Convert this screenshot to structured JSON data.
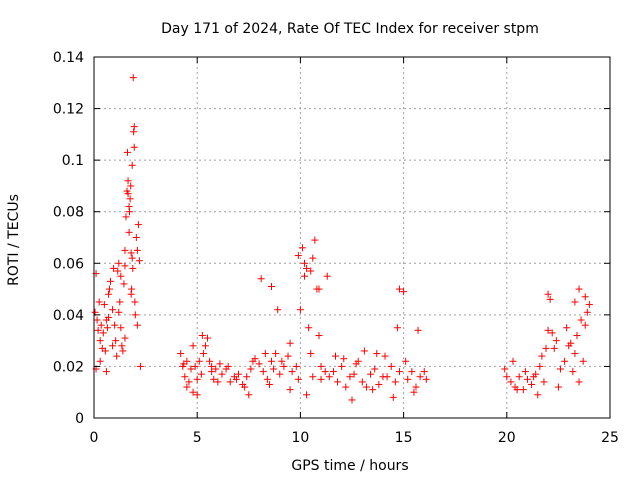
{
  "chart_data": {
    "type": "scatter",
    "title": "Day 171 of 2024, Rate Of TEC Index for receiver stpm",
    "xlabel": "GPS time / hours",
    "ylabel": "ROTI / TECUs",
    "xlim": [
      0,
      25
    ],
    "ylim": [
      0,
      0.14
    ],
    "xticks": [
      0,
      5,
      10,
      15,
      20,
      25
    ],
    "yticks": [
      0,
      0.02,
      0.04,
      0.06,
      0.08,
      0.1,
      0.12,
      0.14
    ],
    "xtick_labels": [
      "0",
      "5",
      "10",
      "15",
      "20",
      "25"
    ],
    "ytick_labels": [
      "0",
      "0.02",
      "0.04",
      "0.06",
      "0.08",
      "0.1",
      "0.12",
      "0.14"
    ],
    "grid": true,
    "marker": "+",
    "color": "#ff0000",
    "series": [
      {
        "name": "ROTI",
        "x": [
          0.05,
          0.1,
          0.15,
          0.2,
          0.25,
          0.3,
          0.35,
          0.4,
          0.45,
          0.5,
          0.55,
          0.6,
          0.65,
          0.7,
          0.75,
          0.8,
          0.9,
          0.95,
          1.0,
          1.05,
          1.1,
          1.15,
          1.2,
          1.25,
          1.3,
          1.35,
          1.4,
          1.45,
          1.5,
          1.55,
          1.6,
          1.62,
          1.65,
          1.7,
          1.72,
          1.75,
          1.78,
          1.8,
          1.82,
          1.85,
          1.88,
          1.9,
          1.92,
          1.95,
          1.98,
          2.0,
          2.05,
          2.1,
          2.15,
          2.2,
          2.25,
          4.2,
          4.3,
          4.4,
          4.5,
          4.6,
          4.7,
          4.8,
          4.9,
          5.0,
          5.1,
          5.2,
          5.3,
          5.4,
          5.5,
          5.6,
          5.7,
          5.8,
          5.9,
          6.0,
          6.2,
          6.4,
          6.6,
          6.8,
          7.0,
          7.2,
          7.4,
          7.6,
          7.8,
          8.0,
          8.2,
          8.4,
          8.6,
          8.8,
          9.0,
          9.2,
          9.4,
          9.6,
          9.8,
          9.9,
          10.0,
          10.1,
          10.2,
          10.3,
          10.4,
          10.5,
          10.6,
          10.7,
          10.8,
          10.9,
          11.0,
          11.2,
          11.4,
          11.6,
          11.8,
          12.0,
          12.2,
          12.4,
          12.6,
          12.8,
          13.0,
          13.2,
          13.4,
          13.6,
          13.8,
          14.0,
          14.2,
          14.4,
          14.6,
          14.8,
          15.0,
          15.2,
          15.4,
          15.6,
          15.8,
          16.0,
          16.1,
          19.9,
          20.0,
          20.2,
          20.4,
          20.6,
          20.8,
          21.0,
          21.2,
          21.4,
          21.6,
          21.8,
          21.9,
          22.0,
          22.1,
          22.2,
          22.4,
          22.6,
          22.8,
          23.0,
          23.2,
          23.3,
          23.4,
          23.5,
          23.6,
          23.7,
          23.8,
          23.9,
          24.0,
          0.3,
          0.6,
          0.9,
          1.2,
          1.5,
          1.8,
          2.1,
          4.5,
          5.0,
          6.5,
          7.5,
          8.5,
          9.5,
          10.3,
          10.6,
          11.0,
          12.5,
          13.5,
          14.5,
          15.5,
          20.5,
          21.5,
          22.5,
          23.5,
          8.1,
          8.6,
          8.9,
          9.9,
          10.2,
          10.5,
          10.9,
          11.3,
          14.8,
          22.0,
          23.3,
          1.95,
          1.85,
          1.7,
          1.65,
          1.5,
          1.3,
          0.1,
          0.7,
          4.35,
          4.8,
          5.25,
          5.7,
          6.1,
          6.9,
          7.3,
          7.7,
          8.3,
          8.7,
          9.1,
          9.5,
          11.7,
          12.1,
          12.7,
          13.1,
          13.7,
          14.1,
          14.7,
          15.1,
          15.7,
          20.3,
          20.9,
          21.3,
          21.7,
          22.3,
          22.9,
          23.1,
          23.8
        ],
        "y": [
          0.041,
          0.056,
          0.038,
          0.034,
          0.045,
          0.03,
          0.036,
          0.027,
          0.033,
          0.044,
          0.026,
          0.018,
          0.035,
          0.039,
          0.05,
          0.053,
          0.042,
          0.058,
          0.036,
          0.03,
          0.024,
          0.057,
          0.06,
          0.045,
          0.035,
          0.028,
          0.026,
          0.052,
          0.065,
          0.078,
          0.088,
          0.103,
          0.092,
          0.072,
          0.08,
          0.085,
          0.09,
          0.064,
          0.05,
          0.062,
          0.058,
          0.132,
          0.111,
          0.105,
          0.045,
          0.04,
          0.07,
          0.065,
          0.075,
          0.061,
          0.02,
          0.025,
          0.02,
          0.016,
          0.022,
          0.014,
          0.019,
          0.01,
          0.02,
          0.015,
          0.022,
          0.017,
          0.025,
          0.028,
          0.031,
          0.022,
          0.018,
          0.015,
          0.019,
          0.014,
          0.017,
          0.019,
          0.014,
          0.016,
          0.017,
          0.013,
          0.016,
          0.019,
          0.023,
          0.021,
          0.018,
          0.015,
          0.022,
          0.025,
          0.017,
          0.02,
          0.024,
          0.018,
          0.02,
          0.015,
          0.042,
          0.066,
          0.055,
          0.058,
          0.035,
          0.025,
          0.062,
          0.069,
          0.05,
          0.032,
          0.02,
          0.018,
          0.016,
          0.018,
          0.014,
          0.02,
          0.012,
          0.016,
          0.017,
          0.022,
          0.014,
          0.012,
          0.017,
          0.019,
          0.013,
          0.016,
          0.016,
          0.02,
          0.014,
          0.018,
          0.049,
          0.015,
          0.018,
          0.012,
          0.016,
          0.018,
          0.015,
          0.019,
          0.016,
          0.014,
          0.012,
          0.016,
          0.011,
          0.015,
          0.013,
          0.017,
          0.02,
          0.014,
          0.027,
          0.034,
          0.046,
          0.033,
          0.03,
          0.019,
          0.022,
          0.028,
          0.018,
          0.025,
          0.032,
          0.05,
          0.038,
          0.022,
          0.047,
          0.041,
          0.044,
          0.022,
          0.038,
          0.028,
          0.041,
          0.031,
          0.048,
          0.036,
          0.012,
          0.009,
          0.02,
          0.009,
          0.013,
          0.011,
          0.009,
          0.016,
          0.015,
          0.007,
          0.011,
          0.008,
          0.01,
          0.011,
          0.009,
          0.012,
          0.014,
          0.054,
          0.051,
          0.042,
          0.063,
          0.06,
          0.057,
          0.05,
          0.055,
          0.05,
          0.048,
          0.045,
          0.113,
          0.098,
          0.082,
          0.087,
          0.059,
          0.055,
          0.019,
          0.048,
          0.021,
          0.028,
          0.032,
          0.02,
          0.021,
          0.015,
          0.012,
          0.022,
          0.025,
          0.019,
          0.022,
          0.029,
          0.024,
          0.023,
          0.021,
          0.026,
          0.025,
          0.024,
          0.035,
          0.022,
          0.034,
          0.022,
          0.018,
          0.016,
          0.024,
          0.027,
          0.035,
          0.029,
          0.036
        ]
      }
    ]
  }
}
